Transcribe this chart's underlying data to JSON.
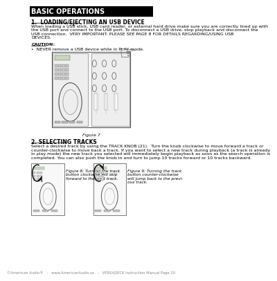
{
  "bg_color": "#ffffff",
  "header_bg": "#000000",
  "header_text": "BASIC OPERATIONS",
  "header_text_color": "#ffffff",
  "header_fontsize": 7,
  "section1_title": "1.  LOADING/EJECTING AN USB DEVICE",
  "section1_title_color": "#000000",
  "section1_title_fontsize": 5.5,
  "section1_body": "When loading a USB stick, USB card reader, or external hard drive make sure you are correctly lined up with\nthe USB port and connect to the USB port. To disconnect a USB drive, stop playback and disconnect the\nUSB connection.  VERY IMPORTANT: PLEASE SEE PAGE 8 FOR DETAILS REGARDING/USING USB\nDEVICES.",
  "section1_body_fontsize": 4.5,
  "caution_label": "CAUTION:",
  "caution_body": "•  NEVER remove a USB device while in PLAY mode.",
  "caution_fontsize": 4.5,
  "figure7_label": "Figure 7",
  "section2_title": "2. SELECTING TRACKS",
  "section2_title_fontsize": 5.5,
  "section2_body": "Select a desired track by using the TRACK KNOB (21).  Turn the knob clockwise to move forward a track or\ncounter-clockwise to move back a track. If you want to select a new track during playback (a track is already\nin play mode) the new track you selected will immediately begin playback as soon as the search operation is\ncompleted. You can also push the knob in and turn to jump 10 tracks forward or 10 tracks backward.",
  "section2_body_fontsize": 4.5,
  "fig8_caption": "Figure 8: Turning the track\nbutton clockwise will skip\nforward to the next track.",
  "fig9_caption": "Figure 9: Turning the track\nbutton counter-clockwise\nwill jump back to the previ-\nous track.",
  "caption_fontsize": 4.2,
  "footer_text": "©American Audio®   -   www.AmericanAudio.us   -   VERSADECK Instruction Manual Page 20",
  "footer_fontsize": 3.8
}
